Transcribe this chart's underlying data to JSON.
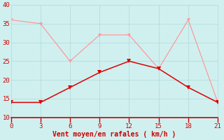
{
  "x": [
    0,
    3,
    6,
    9,
    12,
    15,
    18,
    21
  ],
  "line1_y": [
    14,
    14,
    18,
    22,
    25,
    23,
    18,
    14
  ],
  "line2_y": [
    36,
    35,
    25,
    32,
    32,
    23,
    36,
    14
  ],
  "line1_color": "#dd0000",
  "line2_color": "#ff9999",
  "background_color": "#d0f0f0",
  "grid_color": "#b8dede",
  "axis_color": "#cc0000",
  "xlabel": "Vent moyen/en rafales ( km/h )",
  "xlabel_color": "#cc0000",
  "tick_color": "#cc0000",
  "xlim": [
    0,
    21
  ],
  "ylim": [
    10,
    40
  ],
  "xticks": [
    0,
    3,
    6,
    9,
    12,
    15,
    18,
    21
  ],
  "yticks": [
    10,
    15,
    20,
    25,
    30,
    35,
    40
  ]
}
